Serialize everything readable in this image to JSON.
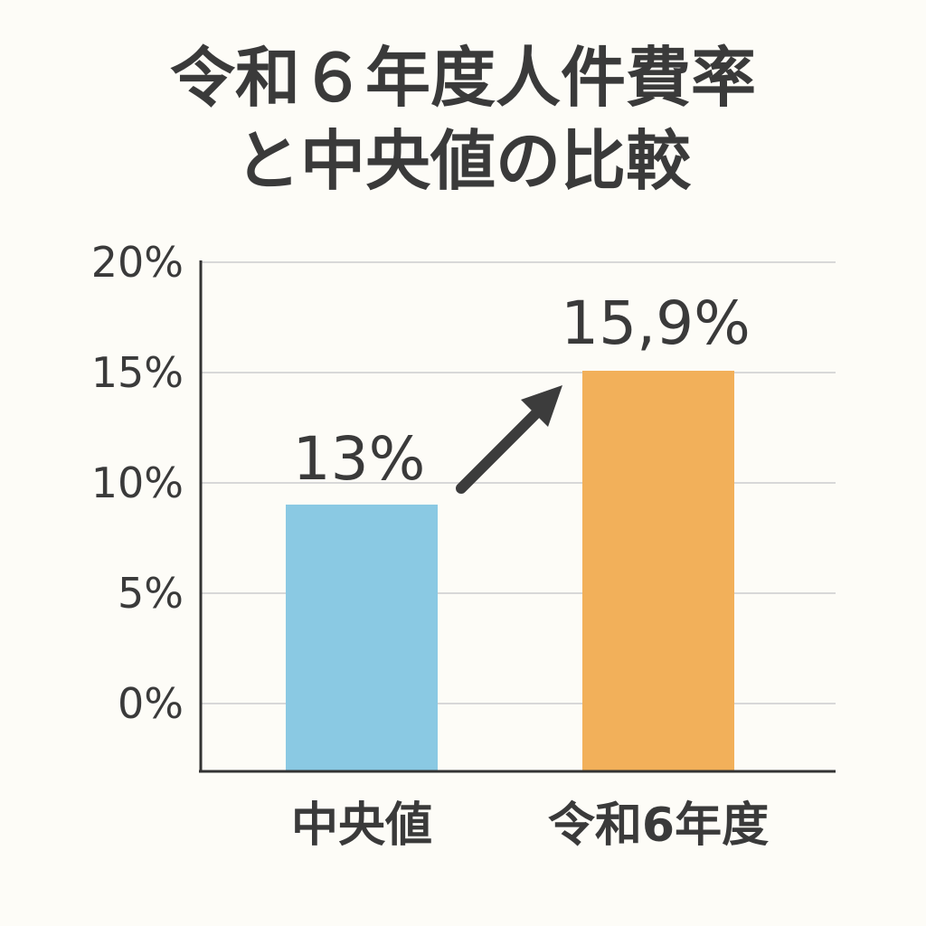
{
  "chart_data": {
    "type": "bar",
    "title": [
      "令和６年度人件費率",
      "と中央値の比較"
    ],
    "xlabel": "",
    "ylabel": "",
    "categories": [
      "中央値",
      "令和6年度"
    ],
    "values": [
      13,
      15.9
    ],
    "data_labels": [
      "13%",
      "15,9%"
    ],
    "bar_colors": [
      "#8ac9e3",
      "#f2b05a"
    ],
    "ytick_labels": [
      "0%",
      "5%",
      "10%",
      "15%",
      "20%"
    ],
    "ytick_values": [
      0,
      5,
      10,
      15,
      20
    ],
    "grid": true,
    "legend": "none",
    "annotation": "up-arrow-icon"
  }
}
